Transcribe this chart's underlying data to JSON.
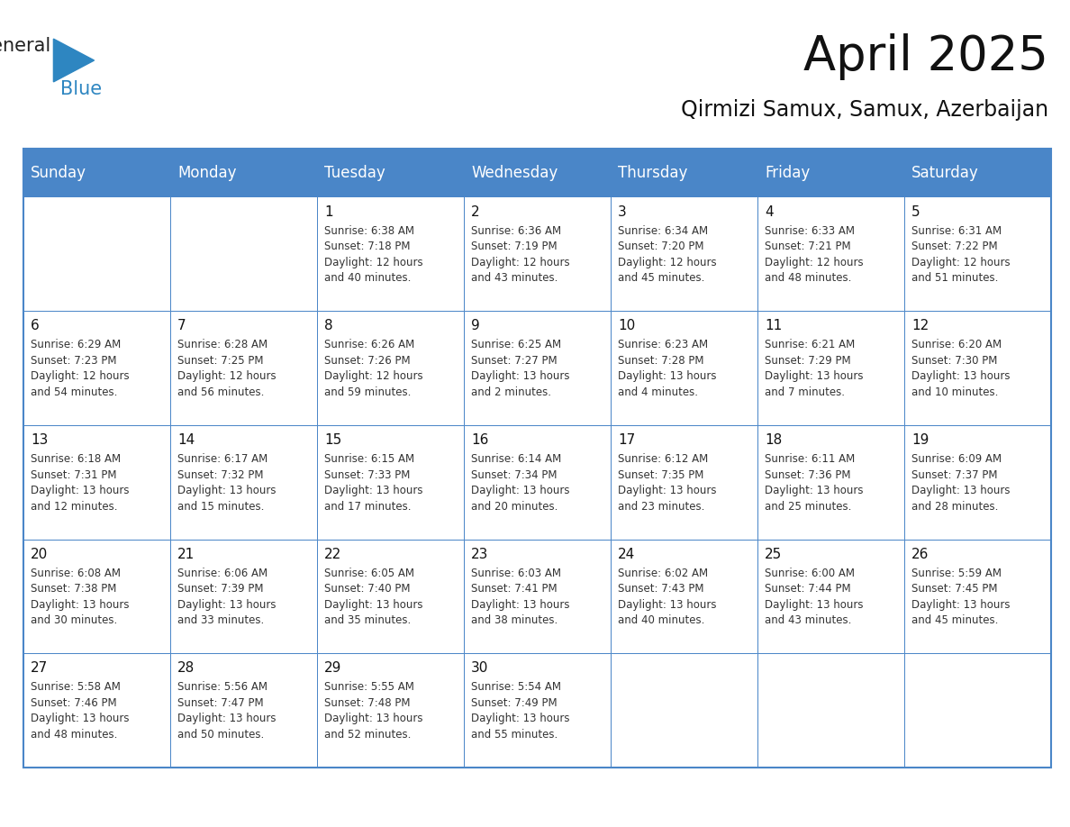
{
  "title": "April 2025",
  "subtitle": "Qirmizi Samux, Samux, Azerbaijan",
  "header_color": "#4a86c8",
  "header_text_color": "#ffffff",
  "border_color": "#4a86c8",
  "text_color": "#333333",
  "day_headers": [
    "Sunday",
    "Monday",
    "Tuesday",
    "Wednesday",
    "Thursday",
    "Friday",
    "Saturday"
  ],
  "title_fontsize": 38,
  "subtitle_fontsize": 17,
  "header_fontsize": 12,
  "day_num_fontsize": 11,
  "cell_fontsize": 8.5,
  "logo_general_fontsize": 15,
  "logo_blue_fontsize": 15,
  "days_data": [
    {
      "day": "",
      "col": 0,
      "row": 0,
      "info": ""
    },
    {
      "day": "",
      "col": 1,
      "row": 0,
      "info": ""
    },
    {
      "day": "1",
      "col": 2,
      "row": 0,
      "info": "Sunrise: 6:38 AM\nSunset: 7:18 PM\nDaylight: 12 hours\nand 40 minutes."
    },
    {
      "day": "2",
      "col": 3,
      "row": 0,
      "info": "Sunrise: 6:36 AM\nSunset: 7:19 PM\nDaylight: 12 hours\nand 43 minutes."
    },
    {
      "day": "3",
      "col": 4,
      "row": 0,
      "info": "Sunrise: 6:34 AM\nSunset: 7:20 PM\nDaylight: 12 hours\nand 45 minutes."
    },
    {
      "day": "4",
      "col": 5,
      "row": 0,
      "info": "Sunrise: 6:33 AM\nSunset: 7:21 PM\nDaylight: 12 hours\nand 48 minutes."
    },
    {
      "day": "5",
      "col": 6,
      "row": 0,
      "info": "Sunrise: 6:31 AM\nSunset: 7:22 PM\nDaylight: 12 hours\nand 51 minutes."
    },
    {
      "day": "6",
      "col": 0,
      "row": 1,
      "info": "Sunrise: 6:29 AM\nSunset: 7:23 PM\nDaylight: 12 hours\nand 54 minutes."
    },
    {
      "day": "7",
      "col": 1,
      "row": 1,
      "info": "Sunrise: 6:28 AM\nSunset: 7:25 PM\nDaylight: 12 hours\nand 56 minutes."
    },
    {
      "day": "8",
      "col": 2,
      "row": 1,
      "info": "Sunrise: 6:26 AM\nSunset: 7:26 PM\nDaylight: 12 hours\nand 59 minutes."
    },
    {
      "day": "9",
      "col": 3,
      "row": 1,
      "info": "Sunrise: 6:25 AM\nSunset: 7:27 PM\nDaylight: 13 hours\nand 2 minutes."
    },
    {
      "day": "10",
      "col": 4,
      "row": 1,
      "info": "Sunrise: 6:23 AM\nSunset: 7:28 PM\nDaylight: 13 hours\nand 4 minutes."
    },
    {
      "day": "11",
      "col": 5,
      "row": 1,
      "info": "Sunrise: 6:21 AM\nSunset: 7:29 PM\nDaylight: 13 hours\nand 7 minutes."
    },
    {
      "day": "12",
      "col": 6,
      "row": 1,
      "info": "Sunrise: 6:20 AM\nSunset: 7:30 PM\nDaylight: 13 hours\nand 10 minutes."
    },
    {
      "day": "13",
      "col": 0,
      "row": 2,
      "info": "Sunrise: 6:18 AM\nSunset: 7:31 PM\nDaylight: 13 hours\nand 12 minutes."
    },
    {
      "day": "14",
      "col": 1,
      "row": 2,
      "info": "Sunrise: 6:17 AM\nSunset: 7:32 PM\nDaylight: 13 hours\nand 15 minutes."
    },
    {
      "day": "15",
      "col": 2,
      "row": 2,
      "info": "Sunrise: 6:15 AM\nSunset: 7:33 PM\nDaylight: 13 hours\nand 17 minutes."
    },
    {
      "day": "16",
      "col": 3,
      "row": 2,
      "info": "Sunrise: 6:14 AM\nSunset: 7:34 PM\nDaylight: 13 hours\nand 20 minutes."
    },
    {
      "day": "17",
      "col": 4,
      "row": 2,
      "info": "Sunrise: 6:12 AM\nSunset: 7:35 PM\nDaylight: 13 hours\nand 23 minutes."
    },
    {
      "day": "18",
      "col": 5,
      "row": 2,
      "info": "Sunrise: 6:11 AM\nSunset: 7:36 PM\nDaylight: 13 hours\nand 25 minutes."
    },
    {
      "day": "19",
      "col": 6,
      "row": 2,
      "info": "Sunrise: 6:09 AM\nSunset: 7:37 PM\nDaylight: 13 hours\nand 28 minutes."
    },
    {
      "day": "20",
      "col": 0,
      "row": 3,
      "info": "Sunrise: 6:08 AM\nSunset: 7:38 PM\nDaylight: 13 hours\nand 30 minutes."
    },
    {
      "day": "21",
      "col": 1,
      "row": 3,
      "info": "Sunrise: 6:06 AM\nSunset: 7:39 PM\nDaylight: 13 hours\nand 33 minutes."
    },
    {
      "day": "22",
      "col": 2,
      "row": 3,
      "info": "Sunrise: 6:05 AM\nSunset: 7:40 PM\nDaylight: 13 hours\nand 35 minutes."
    },
    {
      "day": "23",
      "col": 3,
      "row": 3,
      "info": "Sunrise: 6:03 AM\nSunset: 7:41 PM\nDaylight: 13 hours\nand 38 minutes."
    },
    {
      "day": "24",
      "col": 4,
      "row": 3,
      "info": "Sunrise: 6:02 AM\nSunset: 7:43 PM\nDaylight: 13 hours\nand 40 minutes."
    },
    {
      "day": "25",
      "col": 5,
      "row": 3,
      "info": "Sunrise: 6:00 AM\nSunset: 7:44 PM\nDaylight: 13 hours\nand 43 minutes."
    },
    {
      "day": "26",
      "col": 6,
      "row": 3,
      "info": "Sunrise: 5:59 AM\nSunset: 7:45 PM\nDaylight: 13 hours\nand 45 minutes."
    },
    {
      "day": "27",
      "col": 0,
      "row": 4,
      "info": "Sunrise: 5:58 AM\nSunset: 7:46 PM\nDaylight: 13 hours\nand 48 minutes."
    },
    {
      "day": "28",
      "col": 1,
      "row": 4,
      "info": "Sunrise: 5:56 AM\nSunset: 7:47 PM\nDaylight: 13 hours\nand 50 minutes."
    },
    {
      "day": "29",
      "col": 2,
      "row": 4,
      "info": "Sunrise: 5:55 AM\nSunset: 7:48 PM\nDaylight: 13 hours\nand 52 minutes."
    },
    {
      "day": "30",
      "col": 3,
      "row": 4,
      "info": "Sunrise: 5:54 AM\nSunset: 7:49 PM\nDaylight: 13 hours\nand 55 minutes."
    },
    {
      "day": "",
      "col": 4,
      "row": 4,
      "info": ""
    },
    {
      "day": "",
      "col": 5,
      "row": 4,
      "info": ""
    },
    {
      "day": "",
      "col": 6,
      "row": 4,
      "info": ""
    }
  ]
}
